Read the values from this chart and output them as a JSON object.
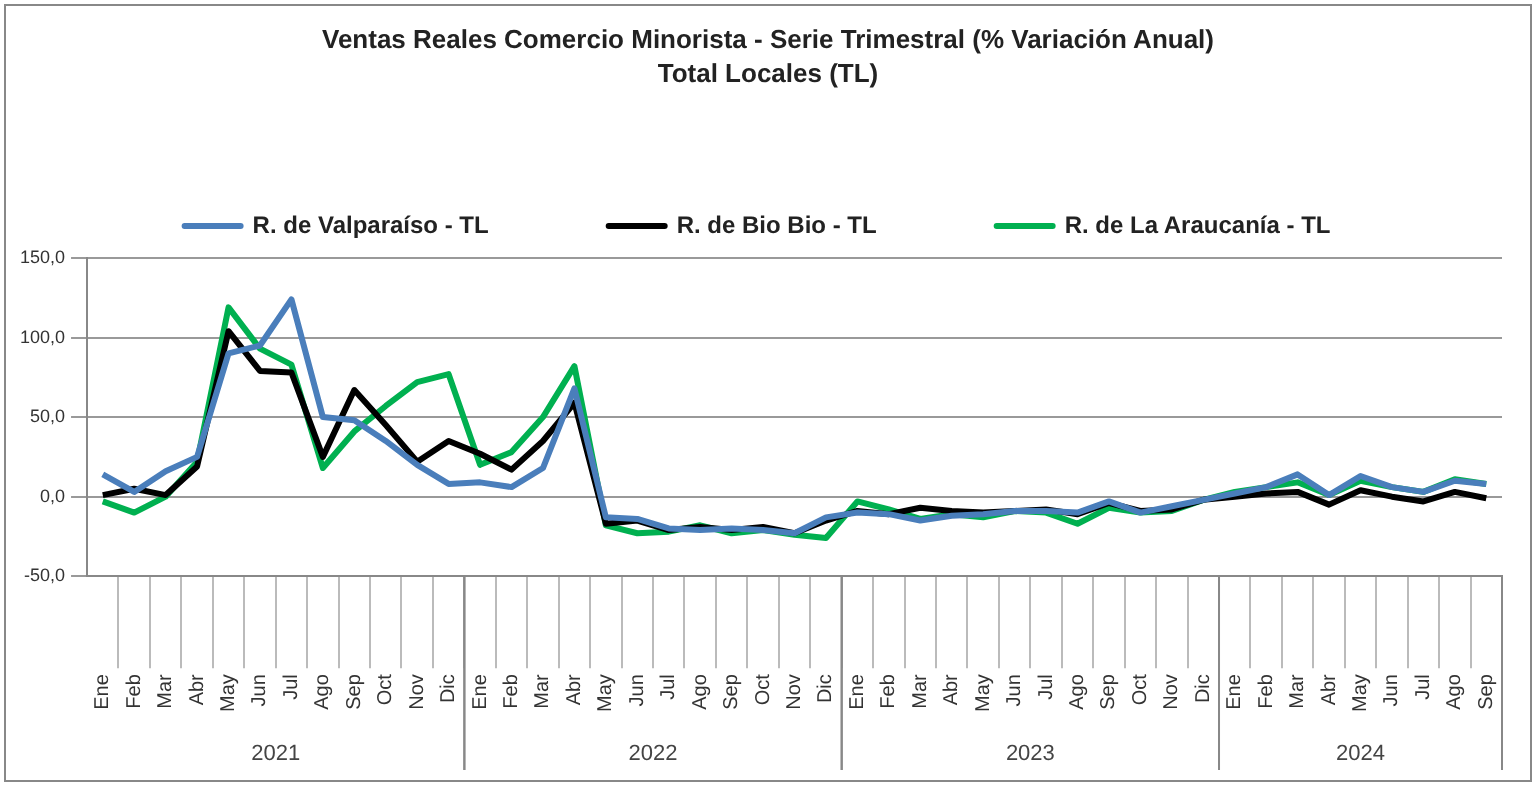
{
  "chart_data": {
    "type": "line",
    "title": "Ventas Reales Comercio Minorista - Serie Trimestral (% Variación Anual)",
    "subtitle": "Total Locales (TL)",
    "categories": [
      "Ene",
      "Feb",
      "Mar",
      "Abr",
      "May",
      "Jun",
      "Jul",
      "Ago",
      "Sep",
      "Oct",
      "Nov",
      "Dic",
      "Ene",
      "Feb",
      "Mar",
      "Abr",
      "May",
      "Jun",
      "Jul",
      "Ago",
      "Sep",
      "Oct",
      "Nov",
      "Dic",
      "Ene",
      "Feb",
      "Mar",
      "Abr",
      "May",
      "Jun",
      "Jul",
      "Ago",
      "Sep",
      "Oct",
      "Nov",
      "Dic",
      "Ene",
      "Feb",
      "Mar",
      "Abr",
      "May",
      "Jun",
      "Jul",
      "Ago",
      "Sep"
    ],
    "series": [
      {
        "name": "R. de Valparaíso - TL",
        "color": "#4a7ebb",
        "values": [
          14,
          3,
          16,
          25,
          90,
          95,
          124,
          50,
          48,
          35,
          20,
          8,
          9,
          6,
          18,
          68,
          -13,
          -14,
          -20,
          -21,
          -20,
          -21,
          -23,
          -13,
          -10,
          -11,
          -15,
          -12,
          -11,
          -9,
          -9,
          -10,
          -3,
          -10,
          -6,
          -2,
          2,
          6,
          14,
          1,
          13,
          6,
          3,
          10,
          8
        ]
      },
      {
        "name": "R. de Bio Bio - TL",
        "color": "#000000",
        "values": [
          1,
          5,
          1,
          19,
          104,
          79,
          78,
          25,
          67,
          45,
          22,
          35,
          27,
          17,
          35,
          59,
          -17,
          -15,
          -21,
          -19,
          -21,
          -19,
          -23,
          -15,
          -9,
          -11,
          -7,
          -9,
          -10,
          -9,
          -8,
          -11,
          -4,
          -9,
          -8,
          -2,
          0,
          2,
          3,
          -5,
          4,
          0,
          -3,
          3,
          -1
        ]
      },
      {
        "name": "R. de La Araucanía - TL",
        "color": "#00b050",
        "values": [
          -3,
          -10,
          0,
          22,
          119,
          93,
          83,
          18,
          41,
          57,
          72,
          77,
          20,
          28,
          50,
          82,
          -18,
          -23,
          -22,
          -18,
          -23,
          -21,
          -24,
          -26,
          -3,
          -8,
          -14,
          -11,
          -13,
          -9,
          -10,
          -17,
          -7,
          -10,
          -9,
          -2,
          3,
          6,
          9,
          1,
          10,
          6,
          3,
          11,
          8
        ]
      }
    ],
    "ylim": [
      -50,
      150
    ],
    "yticks": [
      {
        "value": -50,
        "label": "-50,0"
      },
      {
        "value": 0,
        "label": "0,0"
      },
      {
        "value": 50,
        "label": "50,0"
      },
      {
        "value": 100,
        "label": "100,0"
      },
      {
        "value": 150,
        "label": "150,0"
      }
    ],
    "annotations": [
      "2021",
      "2022",
      "2023",
      "2024"
    ],
    "grid": "y",
    "legend": "top",
    "marker": "none",
    "line_style": "solid"
  }
}
